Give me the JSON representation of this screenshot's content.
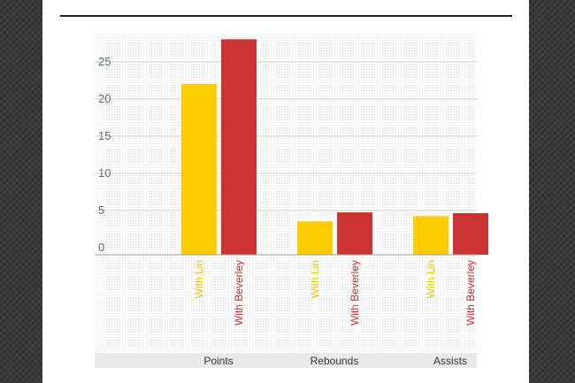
{
  "chart_data": {
    "type": "bar",
    "title": "",
    "xlabel": "",
    "ylabel": "",
    "categories": [
      "Points",
      "Rebounds",
      "Assists"
    ],
    "series": [
      {
        "name": "With Lin",
        "color": "#FFCC00",
        "values": [
          23,
          4.5,
          5.2
        ]
      },
      {
        "name": "With Beverley",
        "color": "#CC3333",
        "values": [
          29,
          5.7,
          5.6
        ]
      }
    ],
    "y_ticks": [
      "0",
      "5",
      "10",
      "15",
      "20",
      "25"
    ],
    "ylim": [
      0,
      30
    ],
    "grid": true,
    "legend": "rotated labels under each bar"
  }
}
